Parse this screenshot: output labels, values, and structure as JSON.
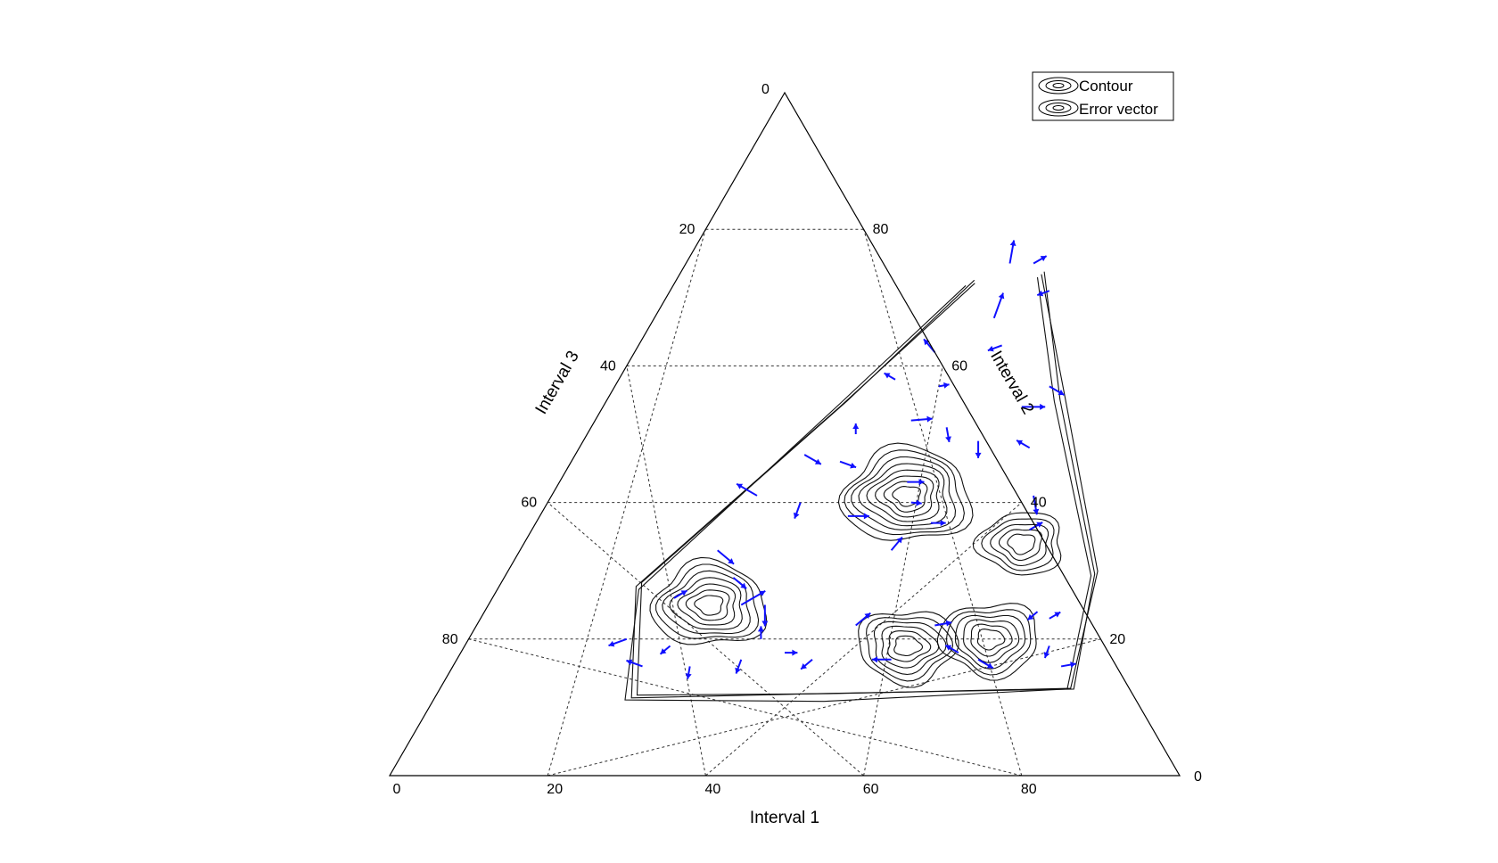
{
  "chart_data": {
    "type": "ternary-contour",
    "axes": {
      "bottom": {
        "title": "Interval 1",
        "ticks": [
          "0",
          "20",
          "40",
          "60",
          "80"
        ],
        "corner_label": "0"
      },
      "right": {
        "title": "Interval 2",
        "ticks": [
          "0",
          "20",
          "40",
          "60",
          "80"
        ]
      },
      "left": {
        "title": "Interval 3",
        "ticks": [
          "0",
          "20",
          "40",
          "60",
          "80"
        ]
      }
    },
    "grid": true,
    "legend": {
      "placement": "top-right",
      "entries": [
        {
          "label": "Contour",
          "color": "#000000"
        },
        {
          "label": "Error vector",
          "color": "#000000"
        }
      ]
    },
    "contour_centers": [
      {
        "interval_1": 45,
        "interval_2": 41,
        "interval_3": 14,
        "levels": 8
      },
      {
        "interval_1": 28,
        "interval_2": 25,
        "interval_3": 47,
        "levels": 7
      },
      {
        "interval_1": 56,
        "interval_2": 19,
        "interval_3": 25,
        "levels": 6
      },
      {
        "interval_1": 66,
        "interval_2": 20,
        "interval_3": 14,
        "levels": 6
      },
      {
        "interval_1": 63,
        "interval_2": 34,
        "interval_3": 3,
        "levels": 5
      }
    ],
    "vector_color": "#1010ff",
    "error_vectors": [
      {
        "interval_1": 41,
        "interval_2": 75,
        "interval_3": -16,
        "angle": 80,
        "length": 2.2
      },
      {
        "interval_1": 44,
        "interval_2": 75,
        "interval_3": -19,
        "angle": 30,
        "length": 1.4
      },
      {
        "interval_1": 48,
        "interval_2": 71,
        "interval_3": -19,
        "angle": 200,
        "length": 1.2
      },
      {
        "interval_1": 43,
        "interval_2": 67,
        "interval_3": -10,
        "angle": 70,
        "length": 2.5
      },
      {
        "interval_1": 46,
        "interval_2": 63,
        "interval_3": -9,
        "angle": 200,
        "length": 1.4
      },
      {
        "interval_1": 38,
        "interval_2": 62,
        "interval_3": 0,
        "angle": 130,
        "length": 1.6
      },
      {
        "interval_1": 35,
        "interval_2": 58,
        "interval_3": 7,
        "angle": 150,
        "length": 1.2
      },
      {
        "interval_1": 41,
        "interval_2": 57,
        "interval_3": 2,
        "angle": 10,
        "length": 1.0
      },
      {
        "interval_1": 55,
        "interval_2": 57,
        "interval_3": -12,
        "angle": 330,
        "length": 1.6
      },
      {
        "interval_1": 53,
        "interval_2": 54,
        "interval_3": -7,
        "angle": 0,
        "length": 2.2
      },
      {
        "interval_1": 40,
        "interval_2": 52,
        "interval_3": 8,
        "angle": 5,
        "length": 2.0
      },
      {
        "interval_1": 45,
        "interval_2": 51,
        "interval_3": 4,
        "angle": 280,
        "length": 1.4
      },
      {
        "interval_1": 34,
        "interval_2": 50,
        "interval_3": 16,
        "angle": 90,
        "length": 1.0
      },
      {
        "interval_1": 50,
        "interval_2": 49,
        "interval_3": 1,
        "angle": 270,
        "length": 1.6
      },
      {
        "interval_1": 57,
        "interval_2": 48,
        "interval_3": -5,
        "angle": 150,
        "length": 1.4
      },
      {
        "interval_1": 29,
        "interval_2": 47,
        "interval_3": 24,
        "angle": 330,
        "length": 1.8
      },
      {
        "interval_1": 34,
        "interval_2": 46,
        "interval_3": 20,
        "angle": 340,
        "length": 1.6
      },
      {
        "interval_1": 44,
        "interval_2": 43,
        "interval_3": 13,
        "angle": 0,
        "length": 1.6
      },
      {
        "interval_1": 26,
        "interval_2": 41,
        "interval_3": 33,
        "angle": 150,
        "length": 2.2
      },
      {
        "interval_1": 32,
        "interval_2": 40,
        "interval_3": 28,
        "angle": 250,
        "length": 1.6
      },
      {
        "interval_1": 46,
        "interval_2": 40,
        "interval_3": 14,
        "angle": 355,
        "length": 1.0
      },
      {
        "interval_1": 61,
        "interval_2": 41,
        "interval_3": -2,
        "angle": 280,
        "length": 1.8
      },
      {
        "interval_1": 39,
        "interval_2": 38,
        "interval_3": 23,
        "angle": 0,
        "length": 2.0
      },
      {
        "interval_1": 50,
        "interval_2": 37,
        "interval_3": 13,
        "angle": 0,
        "length": 1.4
      },
      {
        "interval_1": 63,
        "interval_2": 36,
        "interval_3": 1,
        "angle": 30,
        "length": 1.4
      },
      {
        "interval_1": 25,
        "interval_2": 33,
        "interval_3": 42,
        "angle": 320,
        "length": 2.0
      },
      {
        "interval_1": 47,
        "interval_2": 33,
        "interval_3": 20,
        "angle": 50,
        "length": 1.6
      },
      {
        "interval_1": 29,
        "interval_2": 29,
        "interval_3": 42,
        "angle": 320,
        "length": 1.6
      },
      {
        "interval_1": 23,
        "interval_2": 26,
        "interval_3": 51,
        "angle": 30,
        "length": 1.4
      },
      {
        "interval_1": 32,
        "interval_2": 25,
        "interval_3": 43,
        "angle": 30,
        "length": 2.6
      },
      {
        "interval_1": 35,
        "interval_2": 25,
        "interval_3": 40,
        "angle": 270,
        "length": 2.0
      },
      {
        "interval_1": 48,
        "interval_2": 22,
        "interval_3": 30,
        "angle": 40,
        "length": 1.8
      },
      {
        "interval_1": 58,
        "interval_2": 22,
        "interval_3": 20,
        "angle": 10,
        "length": 1.6
      },
      {
        "interval_1": 70,
        "interval_2": 24,
        "interval_3": 6,
        "angle": 220,
        "length": 1.2
      },
      {
        "interval_1": 72,
        "interval_2": 23,
        "interval_3": 5,
        "angle": 30,
        "length": 1.2
      },
      {
        "interval_1": 20,
        "interval_2": 20,
        "interval_3": 60,
        "angle": 200,
        "length": 1.8
      },
      {
        "interval_1": 26,
        "interval_2": 19,
        "interval_3": 55,
        "angle": 220,
        "length": 1.2
      },
      {
        "interval_1": 36,
        "interval_2": 17,
        "interval_3": 47,
        "angle": 250,
        "length": 1.4
      },
      {
        "interval_1": 45,
        "interval_2": 17,
        "interval_3": 38,
        "angle": 220,
        "length": 1.4
      },
      {
        "interval_1": 55,
        "interval_2": 17,
        "interval_3": 28,
        "angle": 180,
        "length": 1.8
      },
      {
        "interval_1": 63,
        "interval_2": 18,
        "interval_3": 19,
        "angle": 150,
        "length": 1.4
      },
      {
        "interval_1": 66,
        "interval_2": 17,
        "interval_3": 17,
        "angle": 330,
        "length": 1.6
      },
      {
        "interval_1": 77,
        "interval_2": 16,
        "interval_3": 7,
        "angle": 10,
        "length": 1.4
      },
      {
        "interval_1": 74,
        "interval_2": 19,
        "interval_3": 7,
        "angle": 250,
        "length": 1.2
      },
      {
        "interval_1": 41,
        "interval_2": 18,
        "interval_3": 41,
        "angle": 0,
        "length": 1.2
      },
      {
        "interval_1": 30,
        "interval_2": 16,
        "interval_3": 54,
        "angle": 260,
        "length": 1.2
      },
      {
        "interval_1": 24,
        "interval_2": 16,
        "interval_3": 60,
        "angle": 160,
        "length": 1.6
      },
      {
        "interval_1": 37,
        "interval_2": 20,
        "interval_3": 43,
        "angle": 90,
        "length": 1.2
      }
    ]
  }
}
